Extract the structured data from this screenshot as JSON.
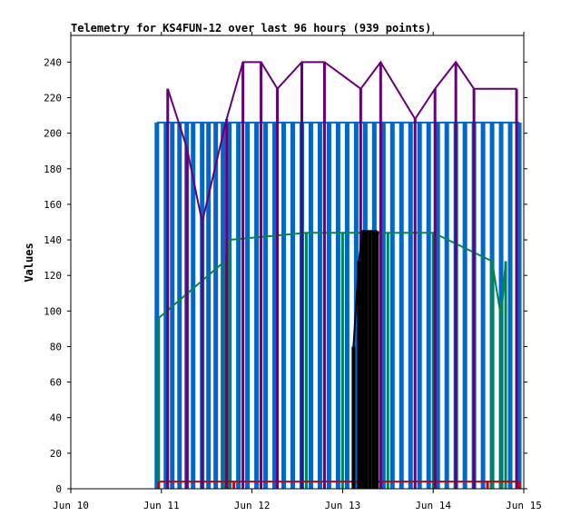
{
  "chart_data": {
    "type": "line",
    "title": "Telemetry for KS4FUN-12 over last 96 hours (939 points)",
    "xlabel": "",
    "ylabel": "Values",
    "xlim": [
      "Jun 10",
      "Jun 15"
    ],
    "ylim": [
      0,
      255
    ],
    "x_ticks": [
      "Jun 10",
      "Jun 11",
      "Jun 12",
      "Jun 13",
      "Jun 14",
      "Jun 15"
    ],
    "y_ticks": [
      0,
      20,
      40,
      60,
      80,
      100,
      120,
      140,
      160,
      180,
      200,
      220,
      240
    ],
    "grid": false,
    "series": [
      {
        "color": "#0066cc",
        "x": [
          10.95,
          11.05,
          11.12,
          11.2,
          11.28,
          11.35,
          11.45,
          11.52,
          11.6,
          11.68,
          11.75,
          11.85,
          11.95,
          12.05,
          12.15,
          12.25,
          12.35,
          12.45,
          12.55,
          12.65,
          12.75,
          12.85,
          12.95,
          13.05,
          13.15,
          13.25,
          13.35,
          13.45,
          13.55,
          13.65,
          13.75,
          13.85,
          13.95,
          14.05,
          14.15,
          14.25,
          14.35,
          14.45,
          14.55,
          14.65,
          14.75,
          14.85,
          14.95
        ],
        "values": [
          206,
          206,
          206,
          206,
          206,
          206,
          206,
          206,
          206,
          206,
          206,
          206,
          206,
          206,
          206,
          206,
          206,
          206,
          206,
          206,
          206,
          206,
          206,
          206,
          206,
          206,
          206,
          206,
          206,
          206,
          206,
          206,
          206,
          206,
          206,
          206,
          206,
          206,
          206,
          206,
          206,
          206,
          206
        ]
      },
      {
        "color": "#008844",
        "x": [
          10.97,
          11.7,
          11.75,
          12.6,
          13.0,
          13.5,
          14.0,
          14.65,
          14.75,
          14.8
        ],
        "values": [
          96,
          128,
          140,
          144,
          144,
          144,
          144,
          128,
          96,
          128
        ]
      },
      {
        "color": "#cc0000",
        "x": [
          10.97,
          11.8,
          13.3,
          14.6,
          14.95
        ],
        "values": [
          4,
          4,
          4,
          4,
          4
        ]
      },
      {
        "color": "#660077",
        "x": [
          11.07,
          11.28,
          11.45,
          11.72,
          11.9,
          12.1,
          12.28,
          12.55,
          12.8,
          13.2,
          13.42,
          13.8,
          14.02,
          14.25,
          14.45,
          14.92
        ],
        "values": [
          225,
          192,
          150,
          208,
          240,
          240,
          225,
          240,
          240,
          225,
          240,
          208,
          225,
          240,
          225,
          225
        ]
      },
      {
        "color": "#000000",
        "x": [
          13.12,
          13.18,
          13.22,
          13.26,
          13.3,
          13.34,
          13.38
        ],
        "values": [
          80,
          128,
          145,
          145,
          145,
          145,
          145
        ]
      }
    ]
  }
}
